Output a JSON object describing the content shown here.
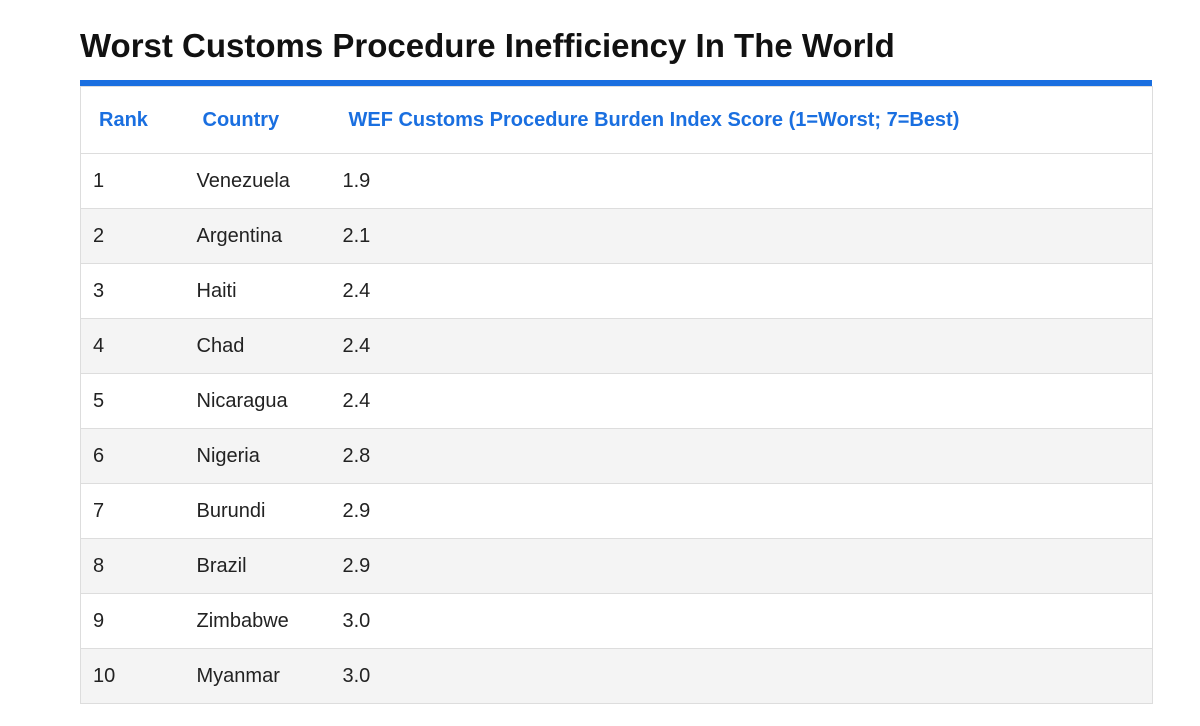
{
  "chart_data": {
    "type": "table",
    "title": "Worst Customs Procedure Inefficiency In The World",
    "columns": [
      "Rank",
      "Country",
      "WEF Customs Procedure Burden Index Score (1=Worst; 7=Best)"
    ],
    "rows": [
      [
        "1",
        "Venezuela",
        "1.9"
      ],
      [
        "2",
        "Argentina",
        "2.1"
      ],
      [
        "3",
        "Haiti",
        "2.4"
      ],
      [
        "4",
        "Chad",
        "2.4"
      ],
      [
        "5",
        "Nicaragua",
        "2.4"
      ],
      [
        "6",
        "Nigeria",
        "2.8"
      ],
      [
        "7",
        "Burundi",
        "2.9"
      ],
      [
        "8",
        "Brazil",
        "2.9"
      ],
      [
        "9",
        "Zimbabwe",
        "3.0"
      ],
      [
        "10",
        "Myanmar",
        "3.0"
      ]
    ]
  },
  "colors": {
    "accent": "#1a6fe0",
    "row_stripe": "#f4f4f4",
    "border": "#dddddd"
  }
}
